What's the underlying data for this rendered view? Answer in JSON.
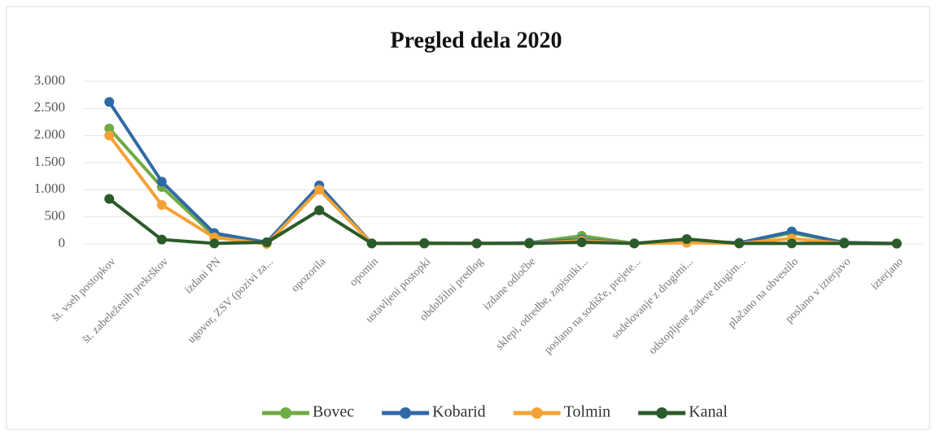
{
  "chart_data": {
    "type": "line",
    "title": "Pregled dela 2020",
    "categories": [
      "št. vseh postopkov",
      "št. zabeleženih prekrškov",
      "izdani PN",
      "ugovor, ZSV (pozivi za...",
      "opozorila",
      "opomin",
      "ustavljeni postopki",
      "obdolžilni predlog",
      "izdane odločbe",
      "sklepi, odredbe, zapisniki...",
      "poslano na sodišče, prejete...",
      "sodelovanje z drugimi...",
      "odstopljene zadeve drugim...",
      "plačano na obvestilo",
      "poslano v izterjavo",
      "izterjano"
    ],
    "series": [
      {
        "name": "Bovec",
        "color": "#6fab45",
        "values": [
          2130,
          1050,
          150,
          20,
          620,
          10,
          20,
          10,
          20,
          150,
          10,
          50,
          20,
          200,
          30,
          10
        ]
      },
      {
        "name": "Kobarid",
        "color": "#2f6aa6",
        "values": [
          2620,
          1150,
          200,
          30,
          1080,
          10,
          10,
          10,
          20,
          80,
          10,
          50,
          20,
          230,
          20,
          10
        ]
      },
      {
        "name": "Tolmin",
        "color": "#f5a235",
        "values": [
          2000,
          720,
          120,
          0,
          1000,
          10,
          10,
          10,
          10,
          60,
          10,
          20,
          10,
          100,
          10,
          5
        ]
      },
      {
        "name": "Kanal",
        "color": "#2c5b2b",
        "values": [
          830,
          80,
          10,
          30,
          620,
          10,
          10,
          10,
          10,
          30,
          10,
          90,
          10,
          10,
          10,
          5
        ]
      }
    ],
    "ylim": [
      0,
      3000
    ],
    "yticks": [
      0,
      500,
      {
        "value": 1000,
        "label": "1.000"
      },
      {
        "value": 1500,
        "label": "1.500"
      },
      {
        "value": 2000,
        "label": "2.000"
      },
      {
        "value": 2500,
        "label": "2.500"
      },
      {
        "value": 3000,
        "label": "3.000"
      }
    ],
    "grid": true,
    "legend": "bottom"
  }
}
